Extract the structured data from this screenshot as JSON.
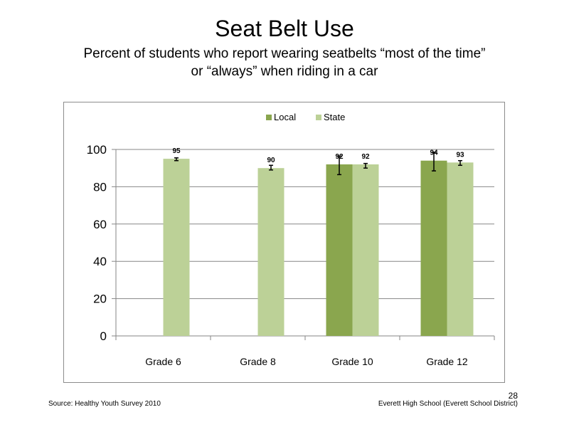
{
  "slide": {
    "title": "Seat Belt Use",
    "subtitle_line1": "Percent of students  who report wearing seatbelts “most of the time”",
    "subtitle_line2": "or “always” when riding in a car",
    "source": "Source: Healthy Youth Survey 2010",
    "school": "Everett High School (Everett School District)",
    "page_number": "28"
  },
  "colors": {
    "local": "#8aa64e",
    "state": "#bcd197",
    "grid": "#878787",
    "axis": "#868686"
  },
  "chart_data": {
    "type": "bar",
    "categories": [
      "Grade 6",
      "Grade 8",
      "Grade 10",
      "Grade 12"
    ],
    "ylim": [
      0,
      100
    ],
    "yticks": [
      0,
      20,
      40,
      60,
      80,
      100
    ],
    "grid": true,
    "legend": "top",
    "series": [
      {
        "name": "Local",
        "values": [
          null,
          null,
          92,
          94
        ],
        "labels": [
          "",
          "",
          "92",
          "94"
        ],
        "err_low": [
          null,
          null,
          86.5,
          88.5
        ],
        "err_high": [
          null,
          null,
          96.5,
          98.5
        ]
      },
      {
        "name": "State",
        "values": [
          95,
          90,
          92,
          93
        ],
        "labels": [
          "95",
          "90",
          "92",
          "93"
        ],
        "err_low": [
          94,
          89,
          90,
          91.5
        ],
        "err_high": [
          95.5,
          91.5,
          92.5,
          94
        ]
      }
    ]
  }
}
